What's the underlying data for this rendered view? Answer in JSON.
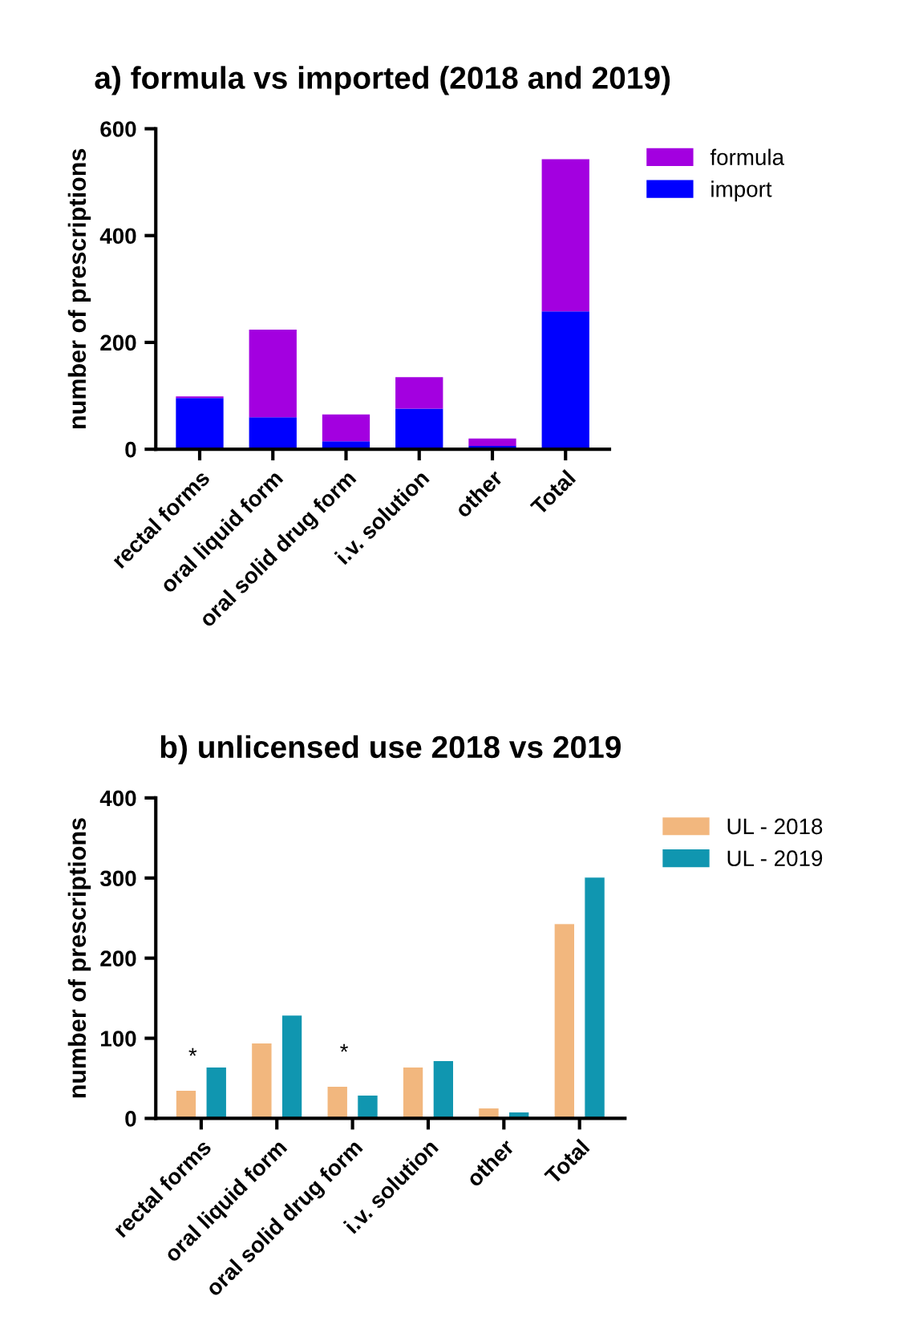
{
  "chart_data": [
    {
      "type": "bar",
      "title": "a) formula vs imported (2018 and 2019)",
      "ylabel": "number of prescriptions",
      "categories": [
        "rectal forms",
        "oral liquid form",
        "oral solid drug form",
        "i.v. solution",
        "other",
        "Total"
      ],
      "stacked": true,
      "ylim": [
        0,
        600
      ],
      "yticks": [
        0,
        200,
        400,
        600
      ],
      "grid": false,
      "legend": "top right",
      "series": [
        {
          "name": "import",
          "color": "#0000ff",
          "values": [
            96,
            60,
            15,
            76,
            6,
            258
          ]
        },
        {
          "name": "formula",
          "color": "#a300e0",
          "values": [
            3,
            164,
            50,
            59,
            14,
            285
          ]
        }
      ]
    },
    {
      "type": "bar",
      "title": "b) unlicensed use 2018 vs 2019",
      "ylabel": "number of prescriptions",
      "categories": [
        "rectal forms",
        "oral liquid form",
        "oral solid drug form",
        "i.v. solution",
        "other",
        "Total"
      ],
      "ylim": [
        0,
        400
      ],
      "yticks": [
        0,
        100,
        200,
        300,
        400
      ],
      "grid": false,
      "legend": "top right",
      "series": [
        {
          "name": "UL - 2018",
          "color": "#f2b77e",
          "values": [
            35,
            94,
            40,
            64,
            13,
            243
          ]
        },
        {
          "name": "UL - 2019",
          "color": "#1096b0",
          "values": [
            64,
            129,
            29,
            72,
            8,
            301
          ]
        }
      ],
      "annotations": [
        {
          "text": "*",
          "x": "rectal forms",
          "y": 35
        },
        {
          "text": "*",
          "x": "oral solid drug form",
          "y": 40
        }
      ]
    }
  ]
}
